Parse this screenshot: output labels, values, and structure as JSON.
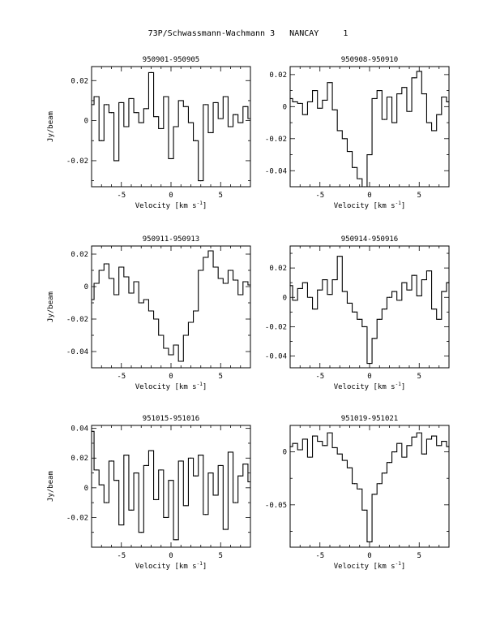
{
  "header": {
    "title": "73P/Schwassmann-Wachmann 3   NANCAY     1"
  },
  "chart_data": [
    {
      "type": "line",
      "title": "950901-950905",
      "xlabel": "Velocity [km s-1]",
      "ylabel": "Jy/beam",
      "xlim": [
        -8,
        8
      ],
      "ylim": [
        -0.033,
        0.027
      ],
      "xticks": [
        -5,
        0,
        5
      ],
      "yticks": [
        0.02,
        0,
        -0.02
      ],
      "ytick_labels": [
        "0.02",
        "0",
        "-0.02"
      ],
      "series": [
        {
          "x": [
            -8.0,
            -7.5,
            -7.0,
            -6.5,
            -6.0,
            -5.5,
            -5.0,
            -4.5,
            -4.0,
            -3.5,
            -3.0,
            -2.5,
            -2.0,
            -1.5,
            -1.0,
            -0.5,
            0.0,
            0.5,
            1.0,
            1.5,
            2.0,
            2.5,
            3.0,
            3.5,
            4.0,
            4.5,
            5.0,
            5.5,
            6.0,
            6.5,
            7.0,
            7.5,
            8.0
          ],
          "y": [
            0.008,
            0.012,
            -0.01,
            0.008,
            0.004,
            -0.02,
            0.009,
            -0.003,
            0.011,
            0.004,
            -0.001,
            0.006,
            0.024,
            0.002,
            -0.004,
            0.012,
            -0.019,
            -0.003,
            0.01,
            0.007,
            -0.001,
            -0.01,
            -0.03,
            0.008,
            -0.006,
            0.009,
            0.001,
            0.012,
            -0.003,
            0.003,
            -0.001,
            0.007,
            0.001
          ]
        }
      ]
    },
    {
      "type": "line",
      "title": "950908-950910",
      "xlabel": "Velocity [km s-1]",
      "ylabel": "",
      "xlim": [
        -8,
        8
      ],
      "ylim": [
        -0.05,
        0.025
      ],
      "xticks": [
        -5,
        0,
        5
      ],
      "yticks": [
        0.02,
        0,
        -0.02,
        -0.04
      ],
      "ytick_labels": [
        "0.02",
        "0",
        "-0.02",
        "-0.04"
      ],
      "series": [
        {
          "x": [
            -8.0,
            -7.5,
            -7.0,
            -6.5,
            -6.0,
            -5.5,
            -5.0,
            -4.5,
            -4.0,
            -3.5,
            -3.0,
            -2.5,
            -2.0,
            -1.5,
            -1.0,
            -0.5,
            0.0,
            0.5,
            1.0,
            1.5,
            2.0,
            2.5,
            3.0,
            3.5,
            4.0,
            4.5,
            5.0,
            5.5,
            6.0,
            6.5,
            7.0,
            7.5,
            8.0
          ],
          "y": [
            0.005,
            0.003,
            0.002,
            -0.005,
            0.003,
            0.01,
            -0.001,
            0.004,
            0.015,
            -0.002,
            -0.015,
            -0.02,
            -0.028,
            -0.038,
            -0.045,
            -0.05,
            -0.03,
            0.005,
            0.01,
            -0.008,
            0.006,
            -0.01,
            0.008,
            0.012,
            -0.003,
            0.018,
            0.022,
            0.008,
            -0.01,
            -0.015,
            -0.005,
            0.006,
            0.003
          ]
        }
      ]
    },
    {
      "type": "line",
      "title": "950911-950913",
      "xlabel": "Velocity [km s-1]",
      "ylabel": "Jy/beam",
      "xlim": [
        -8,
        8
      ],
      "ylim": [
        -0.05,
        0.025
      ],
      "xticks": [
        -5,
        0,
        5
      ],
      "yticks": [
        0.02,
        0,
        -0.02,
        -0.04
      ],
      "ytick_labels": [
        "0.02",
        "0",
        "-0.02",
        "-0.04"
      ],
      "series": [
        {
          "x": [
            -8.0,
            -7.5,
            -7.0,
            -6.5,
            -6.0,
            -5.5,
            -5.0,
            -4.5,
            -4.0,
            -3.5,
            -3.0,
            -2.5,
            -2.0,
            -1.5,
            -1.0,
            -0.5,
            0.0,
            0.5,
            1.0,
            1.5,
            2.0,
            2.5,
            3.0,
            3.5,
            4.0,
            4.5,
            5.0,
            5.5,
            6.0,
            6.5,
            7.0,
            7.5,
            8.0
          ],
          "y": [
            -0.008,
            0.002,
            0.01,
            0.014,
            0.005,
            -0.005,
            0.012,
            0.006,
            -0.004,
            0.003,
            -0.01,
            -0.008,
            -0.015,
            -0.02,
            -0.03,
            -0.038,
            -0.042,
            -0.036,
            -0.046,
            -0.03,
            -0.022,
            -0.015,
            0.01,
            0.018,
            0.022,
            0.012,
            0.005,
            0.002,
            0.01,
            0.004,
            -0.005,
            0.003,
            0.001
          ]
        }
      ]
    },
    {
      "type": "line",
      "title": "950914-950916",
      "xlabel": "Velocity [km s-1]",
      "ylabel": "",
      "xlim": [
        -8,
        8
      ],
      "ylim": [
        -0.048,
        0.035
      ],
      "xticks": [
        -5,
        0,
        5
      ],
      "yticks": [
        0.02,
        0,
        -0.02,
        -0.04
      ],
      "ytick_labels": [
        "0.02",
        "0",
        "-0.02",
        "-0.04"
      ],
      "series": [
        {
          "x": [
            -8.0,
            -7.5,
            -7.0,
            -6.5,
            -6.0,
            -5.5,
            -5.0,
            -4.5,
            -4.0,
            -3.5,
            -3.0,
            -2.5,
            -2.0,
            -1.5,
            -1.0,
            -0.5,
            0.0,
            0.5,
            1.0,
            1.5,
            2.0,
            2.5,
            3.0,
            3.5,
            4.0,
            4.5,
            5.0,
            5.5,
            6.0,
            6.5,
            7.0,
            7.5,
            8.0
          ],
          "y": [
            0.008,
            -0.002,
            0.006,
            0.01,
            0.0,
            -0.008,
            0.005,
            0.012,
            0.002,
            0.012,
            0.028,
            0.004,
            -0.004,
            -0.01,
            -0.015,
            -0.02,
            -0.045,
            -0.028,
            -0.015,
            -0.008,
            0.0,
            0.004,
            -0.002,
            0.01,
            0.005,
            0.015,
            0.001,
            0.012,
            0.018,
            -0.008,
            -0.015,
            0.004,
            0.01
          ]
        }
      ]
    },
    {
      "type": "line",
      "title": "951015-951016",
      "xlabel": "Velocity [km s-1]",
      "ylabel": "Jy/beam",
      "xlim": [
        -8,
        8
      ],
      "ylim": [
        -0.04,
        0.042
      ],
      "xticks": [
        -5,
        0,
        5
      ],
      "yticks": [
        0.04,
        0.02,
        0,
        -0.02
      ],
      "ytick_labels": [
        "0.04",
        "0.02",
        "0",
        "-0.02"
      ],
      "series": [
        {
          "x": [
            -8.0,
            -7.5,
            -7.0,
            -6.5,
            -6.0,
            -5.5,
            -5.0,
            -4.5,
            -4.0,
            -3.5,
            -3.0,
            -2.5,
            -2.0,
            -1.5,
            -1.0,
            -0.5,
            0.0,
            0.5,
            1.0,
            1.5,
            2.0,
            2.5,
            3.0,
            3.5,
            4.0,
            4.5,
            5.0,
            5.5,
            6.0,
            6.5,
            7.0,
            7.5,
            8.0
          ],
          "y": [
            0.038,
            0.012,
            0.002,
            -0.01,
            0.018,
            0.005,
            -0.025,
            0.022,
            -0.015,
            0.01,
            -0.03,
            0.015,
            0.025,
            -0.008,
            0.012,
            -0.02,
            0.005,
            -0.035,
            0.018,
            -0.012,
            0.02,
            0.008,
            0.022,
            -0.018,
            0.01,
            -0.005,
            0.015,
            -0.028,
            0.024,
            -0.01,
            0.008,
            0.016,
            0.004
          ]
        }
      ]
    },
    {
      "type": "line",
      "title": "951019-951021",
      "xlabel": "Velocity [km s-1]",
      "ylabel": "",
      "xlim": [
        -8,
        8
      ],
      "ylim": [
        -0.09,
        0.025
      ],
      "xticks": [
        -5,
        0,
        5
      ],
      "yticks": [
        0,
        -0.05
      ],
      "ytick_labels": [
        "0",
        "-0.05"
      ],
      "series": [
        {
          "x": [
            -8.0,
            -7.5,
            -7.0,
            -6.5,
            -6.0,
            -5.5,
            -5.0,
            -4.5,
            -4.0,
            -3.5,
            -3.0,
            -2.5,
            -2.0,
            -1.5,
            -1.0,
            -0.5,
            0.0,
            0.5,
            1.0,
            1.5,
            2.0,
            2.5,
            3.0,
            3.5,
            4.0,
            4.5,
            5.0,
            5.5,
            6.0,
            6.5,
            7.0,
            7.5,
            8.0
          ],
          "y": [
            0.005,
            0.008,
            0.002,
            0.012,
            -0.005,
            0.015,
            0.01,
            0.006,
            0.018,
            0.004,
            -0.002,
            -0.008,
            -0.015,
            -0.03,
            -0.035,
            -0.055,
            -0.085,
            -0.04,
            -0.03,
            -0.02,
            -0.01,
            0.0,
            0.008,
            -0.005,
            0.006,
            0.014,
            0.018,
            -0.002,
            0.012,
            0.015,
            0.006,
            0.01,
            0.005
          ]
        }
      ]
    }
  ]
}
